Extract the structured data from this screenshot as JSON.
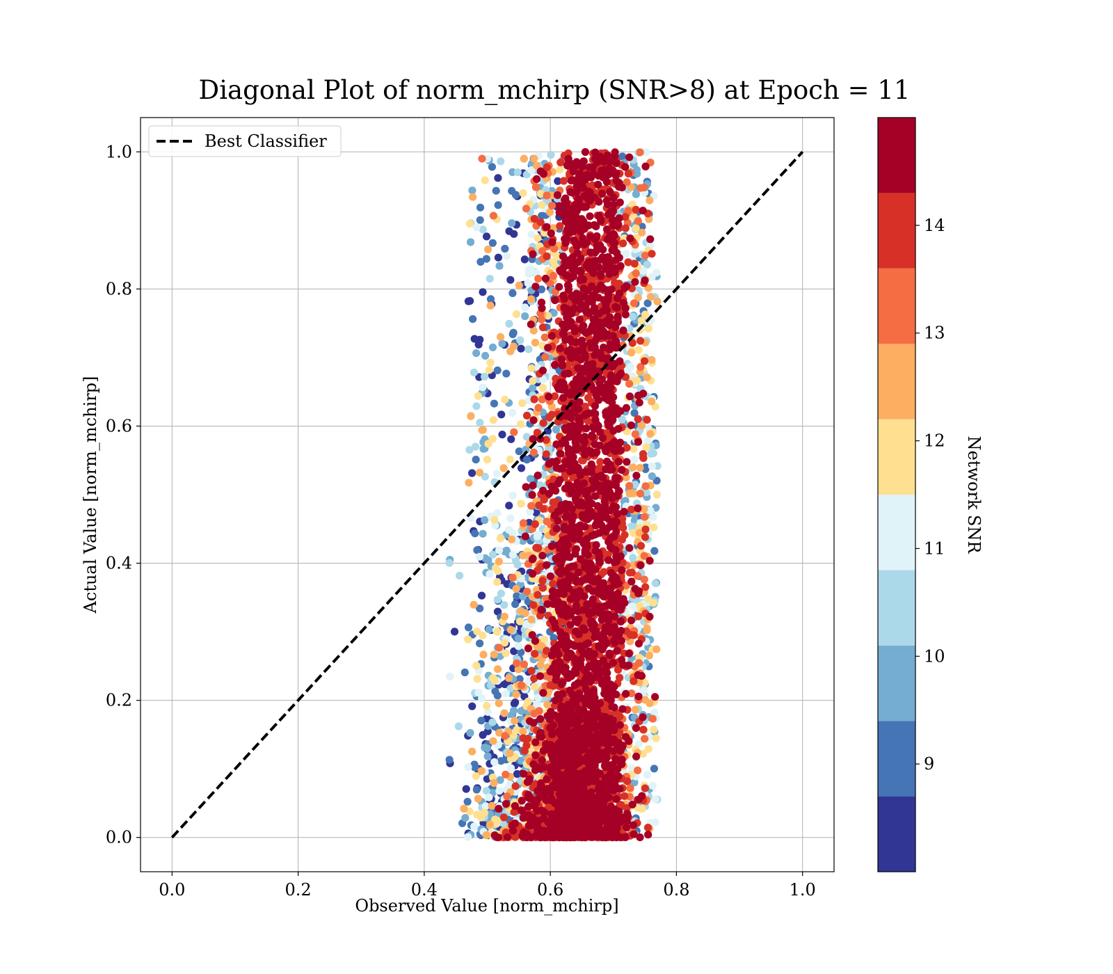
{
  "chart_data": {
    "type": "scatter",
    "title": "Diagonal Plot of norm_mchirp (SNR>8) at Epoch = 11",
    "xlabel": "Observed Value [norm_mchirp]",
    "ylabel": "Actual Value [norm_mchirp]",
    "xlim": [
      -0.05,
      1.05
    ],
    "ylim": [
      -0.05,
      1.05
    ],
    "xticks": [
      "0.0",
      "0.2",
      "0.4",
      "0.6",
      "0.8",
      "1.0"
    ],
    "yticks": [
      "0.0",
      "0.2",
      "0.4",
      "0.6",
      "0.8",
      "1.0"
    ],
    "xtick_values": [
      0.0,
      0.2,
      0.4,
      0.6,
      0.8,
      1.0
    ],
    "ytick_values": [
      0.0,
      0.2,
      0.4,
      0.6,
      0.8,
      1.0
    ],
    "grid": true,
    "legend": {
      "position": "top-left",
      "entries": [
        "Best Classifier"
      ]
    },
    "reference_line": {
      "name": "Best Classifier",
      "x": [
        0.0,
        1.0
      ],
      "y": [
        0.0,
        1.0
      ],
      "style": "dashed",
      "color": "#000000"
    },
    "colorbar": {
      "label": "Network SNR",
      "min": 8.0,
      "max": 15.0,
      "ticks": [
        "9",
        "10",
        "11",
        "12",
        "13",
        "14"
      ],
      "tick_values": [
        9,
        10,
        11,
        12,
        13,
        14
      ],
      "levels": [
        8.0,
        8.7,
        9.4,
        10.1,
        10.8,
        11.5,
        12.2,
        12.9,
        13.6,
        14.3,
        15.0
      ],
      "colors": [
        "#313695",
        "#4575b4",
        "#74add1",
        "#abd9e9",
        "#e0f3f8",
        "#fee090",
        "#fdae61",
        "#f46d43",
        "#d73027",
        "#a50026"
      ]
    },
    "point_color_extra": "#a50026",
    "clusters": [
      {
        "snr": "high",
        "x_range": [
          0.6,
          0.73
        ],
        "y_range": [
          0.0,
          1.0
        ],
        "note": "dense band"
      },
      {
        "snr": "low",
        "x_range": [
          0.44,
          0.62
        ],
        "y_range": [
          0.0,
          0.98
        ],
        "note": "left low-SNR scatter"
      }
    ]
  }
}
